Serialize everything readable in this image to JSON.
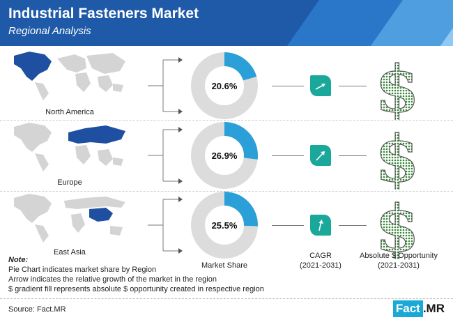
{
  "header": {
    "title": "Industrial Fasteners Market",
    "subtitle": "Regional Analysis"
  },
  "chart_data": {
    "type": "pie",
    "categories": [
      "North America",
      "Europe",
      "East Asia"
    ],
    "values": [
      20.6,
      26.9,
      25.5
    ],
    "value_labels": [
      "20.6%",
      "26.9%",
      "25.5%"
    ],
    "unit": "%",
    "colors": {
      "share": "#2a9fd8",
      "rest": "#dcdcdc",
      "cagr_box": "#1aa89a",
      "dollar": "#3a8a3a"
    }
  },
  "regions": [
    {
      "name": "North America",
      "share_label": "20.6%"
    },
    {
      "name": "Europe",
      "share_label": "26.9%"
    },
    {
      "name": "East Asia",
      "share_label": "25.5%"
    }
  ],
  "columns": {
    "market_share": "Market Share",
    "cagr": "CAGR",
    "cagr_period": "(2021-2031)",
    "opportunity": "Absolute $ Opportunity",
    "opportunity_period": "(2021-2031)"
  },
  "note": {
    "title": "Note:",
    "lines": [
      "Pie Chart indicates market share by Region",
      "Arrow indicates the relative growth of the market in the region",
      "$ gradient fill represents absolute $ opportunity created in respective region"
    ]
  },
  "source": "Source: Fact.MR",
  "logo": {
    "part1": "Fact",
    "part2": ".MR"
  }
}
